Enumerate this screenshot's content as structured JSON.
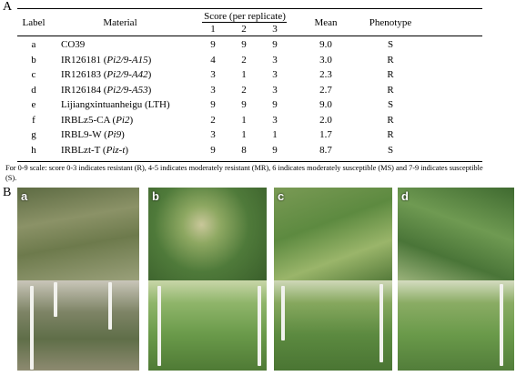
{
  "panels": {
    "a": "A",
    "b": "B"
  },
  "table": {
    "headers": {
      "label": "Label",
      "material": "Material",
      "score_group": "Score (per replicate)",
      "rep1": "1",
      "rep2": "2",
      "rep3": "3",
      "mean": "Mean",
      "phenotype": "Phenotype"
    },
    "rows": [
      {
        "label": "a",
        "material": "CO39",
        "gene": "",
        "s1": "9",
        "s2": "9",
        "s3": "9",
        "mean": "9.0",
        "phenotype": "S"
      },
      {
        "label": "b",
        "material": "IR126181 (",
        "gene": "Pi2/9-A15",
        "s1": "4",
        "s2": "2",
        "s3": "3",
        "mean": "3.0",
        "phenotype": "R"
      },
      {
        "label": "c",
        "material": "IR126183 (",
        "gene": "Pi2/9-A42",
        "s1": "3",
        "s2": "1",
        "s3": "3",
        "mean": "2.3",
        "phenotype": "R"
      },
      {
        "label": "d",
        "material": "IR126184 (",
        "gene": "Pi2/9-A53",
        "s1": "3",
        "s2": "2",
        "s3": "3",
        "mean": "2.7",
        "phenotype": "R"
      },
      {
        "label": "e",
        "material": "Lijiangxintuanheigu (LTH)",
        "gene": "",
        "s1": "9",
        "s2": "9",
        "s3": "9",
        "mean": "9.0",
        "phenotype": "S"
      },
      {
        "label": "f",
        "material": "IRBLz5-CA (",
        "gene": "Pi2",
        "s1": "2",
        "s2": "1",
        "s3": "3",
        "mean": "2.0",
        "phenotype": "R"
      },
      {
        "label": "g",
        "material": "IRBL9-W (",
        "gene": "Pi9",
        "s1": "3",
        "s2": "1",
        "s3": "1",
        "mean": "1.7",
        "phenotype": "R"
      },
      {
        "label": "h",
        "material": "IRBLzt-T (",
        "gene": "Piz-t",
        "s1": "9",
        "s2": "8",
        "s3": "9",
        "mean": "8.7",
        "phenotype": "S"
      }
    ],
    "footnote": "For 0-9 scale: score 0-3 indicates resistant (R), 4-5 indicates moderately resistant (MR), 6 indicates moderately susceptible (MS) and 7-9 indicates susceptible (S)."
  },
  "photos": [
    {
      "label": "a",
      "top_color": "#6f7a55",
      "bottom_color": "#8a8a70"
    },
    {
      "label": "b",
      "top_color": "#4f7a3a",
      "bottom_color": "#7aa05a"
    },
    {
      "label": "c",
      "top_color": "#5f8a45",
      "bottom_color": "#6a9a4a"
    },
    {
      "label": "d",
      "top_color": "#4a7538",
      "bottom_color": "#6f9a52"
    }
  ]
}
